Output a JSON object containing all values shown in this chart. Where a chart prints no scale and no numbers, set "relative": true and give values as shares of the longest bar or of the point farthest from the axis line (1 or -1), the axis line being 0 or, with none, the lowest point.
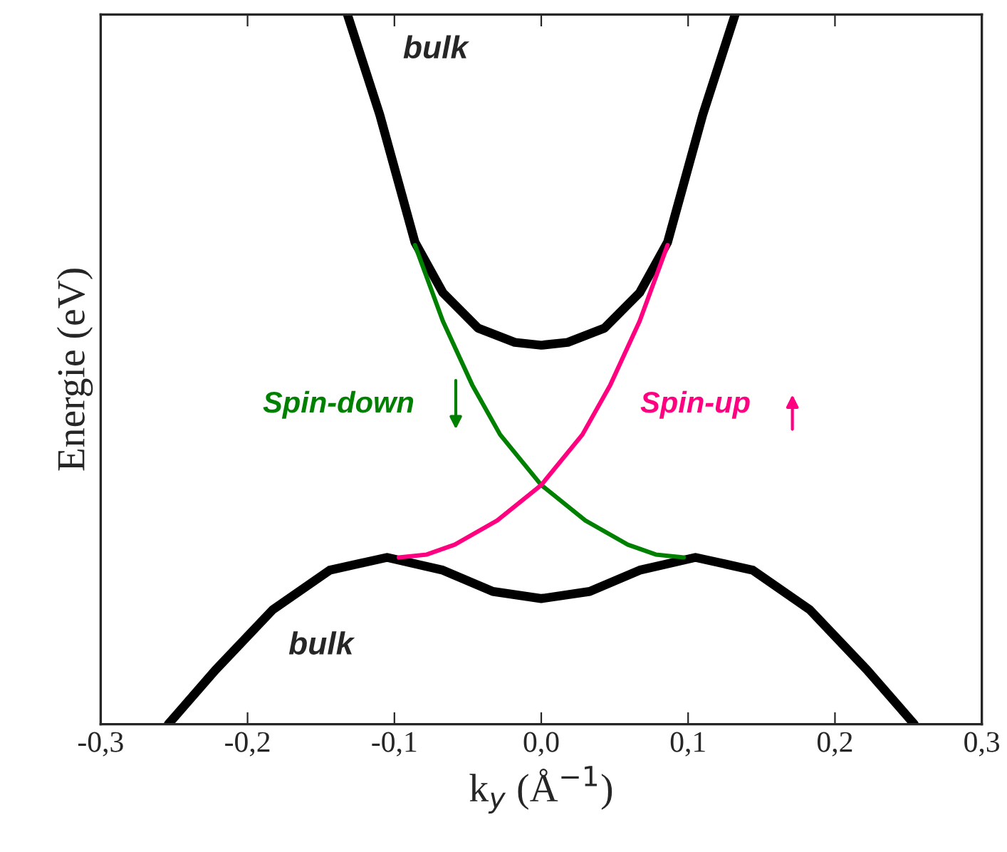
{
  "chart_data": {
    "type": "line",
    "relative": true,
    "xlabel": "k$_{y}$ (Å$^{−1}$)",
    "ylabel": "Energie (eV)",
    "xlim": [
      -0.3,
      0.3
    ],
    "xticks": [
      {
        "value": -0.3,
        "label": "-0,3"
      },
      {
        "value": -0.2,
        "label": "-0,2"
      },
      {
        "value": -0.1,
        "label": "-0,1"
      },
      {
        "value": 0.0,
        "label": "0,0"
      },
      {
        "value": 0.1,
        "label": "0,1"
      },
      {
        "value": 0.2,
        "label": "0,2"
      },
      {
        "value": 0.3,
        "label": "0,3"
      }
    ],
    "tick_labels": "x",
    "grid": false,
    "legend": "center",
    "marker": "none",
    "line_style": "solid",
    "annotations": [
      "bulk",
      "bulk"
    ],
    "series": [
      {
        "color": "#000000",
        "x": [
          -0.132,
          -0.11,
          -0.086,
          -0.067,
          -0.043,
          -0.018,
          0.0,
          0.018,
          0.043,
          0.067,
          0.086,
          0.11,
          0.132
        ],
        "values": [
          1.0,
          0.859,
          0.679,
          0.608,
          0.558,
          0.538,
          0.534,
          0.538,
          0.558,
          0.608,
          0.679,
          0.859,
          1.0
        ]
      },
      {
        "color": "#000000",
        "x": [
          -0.254,
          -0.222,
          -0.183,
          -0.144,
          -0.105,
          -0.067,
          -0.033,
          0.0,
          0.033,
          0.067,
          0.105,
          0.144,
          0.183,
          0.222,
          0.254
        ],
        "values": [
          0.0,
          0.076,
          0.161,
          0.217,
          0.235,
          0.217,
          0.187,
          0.177,
          0.187,
          0.217,
          0.235,
          0.217,
          0.161,
          0.076,
          0.0
        ]
      },
      {
        "name": "Spin-down",
        "color": "#008000",
        "x": [
          -0.086,
          -0.067,
          -0.047,
          -0.028,
          0.0,
          0.03,
          0.059,
          0.078,
          0.097
        ],
        "values": [
          0.675,
          0.568,
          0.478,
          0.408,
          0.337,
          0.287,
          0.253,
          0.239,
          0.235
        ]
      },
      {
        "name": "Spin-up",
        "color": "#ff0080",
        "x": [
          -0.097,
          -0.078,
          -0.059,
          -0.03,
          0.0,
          0.028,
          0.047,
          0.067,
          0.086
        ],
        "values": [
          0.235,
          0.239,
          0.253,
          0.287,
          0.337,
          0.408,
          0.478,
          0.568,
          0.675
        ]
      }
    ]
  }
}
